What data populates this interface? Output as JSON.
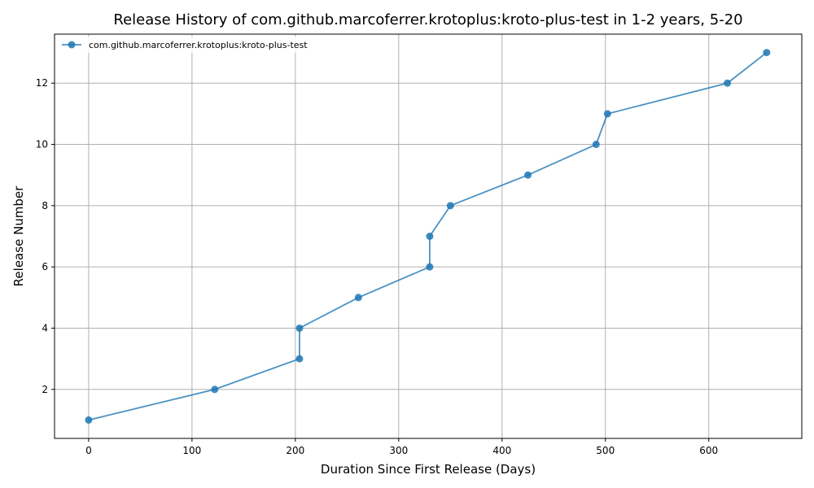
{
  "chart_data": {
    "type": "line",
    "title": "Release History of com.github.marcoferrer.krotoplus:kroto-plus-test in 1-2 years, 5-20",
    "xlabel": "Duration Since First Release (Days)",
    "ylabel": "Release Number",
    "xlim": [
      -33,
      690
    ],
    "ylim": [
      0.4,
      13.6
    ],
    "xticks": [
      0,
      100,
      200,
      300,
      400,
      500,
      600
    ],
    "yticks": [
      2,
      4,
      6,
      8,
      10,
      12
    ],
    "grid": true,
    "legend_position": "top-left",
    "series": [
      {
        "name": "com.github.marcoferrer.krotoplus:kroto-plus-test",
        "color": "#1f77b4",
        "marker": "circle",
        "x": [
          0,
          122,
          204,
          204,
          261,
          330,
          330,
          350,
          425,
          491,
          502,
          618,
          656
        ],
        "y": [
          1,
          2,
          3,
          4,
          5,
          6,
          7,
          8,
          9,
          10,
          11,
          12,
          13
        ]
      }
    ]
  }
}
